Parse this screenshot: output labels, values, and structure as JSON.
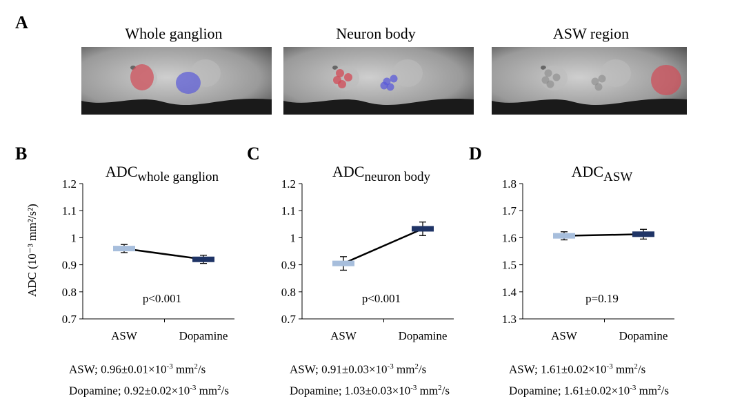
{
  "panel_a": {
    "letter": "A",
    "images": [
      {
        "title": "Whole ganglion",
        "roi": "whole"
      },
      {
        "title": "Neuron body",
        "roi": "neuron"
      },
      {
        "title": "ASW region",
        "roi": "asw"
      }
    ],
    "colors": {
      "red_roi": "#d24a55",
      "blue_roi": "#5a5ad8"
    }
  },
  "y_axis_label": "ADC (10⁻³ mm²/s²)",
  "summaries": [
    {
      "line1_prefix": "ASW; 0.96±0.01×10",
      "line1_exp": "-3",
      "line1_mid": " mm",
      "line1_exp2": "2",
      "line1_suffix": "/s",
      "line2_prefix": "Dopamine; 0.92±0.02×10",
      "line2_exp": "-3",
      "line2_mid": " mm",
      "line2_exp2": "2",
      "line2_suffix": "/s"
    },
    {
      "line1_prefix": "ASW; 0.91±0.03×10",
      "line1_exp": "-3",
      "line1_mid": " mm",
      "line1_exp2": "2",
      "line1_suffix": "/s",
      "line2_prefix": "Dopamine; 1.03±0.03×10",
      "line2_exp": "-3",
      "line2_mid": " mm",
      "line2_exp2": "2",
      "line2_suffix": "/s"
    },
    {
      "line1_prefix": "ASW; 1.61±0.02×10",
      "line1_exp": "-3",
      "line1_mid": " mm",
      "line1_exp2": "2",
      "line1_suffix": "/s",
      "line2_prefix": "Dopamine; 1.61±0.02×10",
      "line2_exp": "-3",
      "line2_mid": " mm",
      "line2_exp2": "2",
      "line2_suffix": "/s"
    }
  ],
  "chart_data": [
    {
      "letter": "B",
      "type": "line",
      "title_main": "ADC",
      "title_sub": "whole ganglion",
      "categories": [
        "ASW",
        "Dopamine"
      ],
      "values": [
        0.96,
        0.92
      ],
      "errors": [
        0.015,
        0.015
      ],
      "ylim": [
        0.7,
        1.2
      ],
      "yticks": [
        "0.7",
        "0.8",
        "0.9",
        "1",
        "1.1",
        "1.2"
      ],
      "annotation": "p<0.001",
      "marker_colors": [
        "#a7bedc",
        "#1f3466"
      ]
    },
    {
      "letter": "C",
      "type": "line",
      "title_main": "ADC",
      "title_sub": "neuron body",
      "categories": [
        "ASW",
        "Dopamine"
      ],
      "values": [
        0.905,
        1.033
      ],
      "errors": [
        0.025,
        0.025
      ],
      "ylim": [
        0.7,
        1.2
      ],
      "yticks": [
        "0.7",
        "0.8",
        "0.9",
        "1",
        "1.1",
        "1.2"
      ],
      "annotation": "p<0.001",
      "marker_colors": [
        "#a7bedc",
        "#1f3466"
      ]
    },
    {
      "letter": "D",
      "type": "line",
      "title_main": "ADC",
      "title_sub": "ASW",
      "categories": [
        "ASW",
        "Dopamine"
      ],
      "values": [
        1.607,
        1.613
      ],
      "errors": [
        0.015,
        0.018
      ],
      "ylim": [
        1.3,
        1.8
      ],
      "yticks": [
        "1.3",
        "1.4",
        "1.5",
        "1.6",
        "1.7",
        "1.8"
      ],
      "annotation": "p=0.19",
      "marker_colors": [
        "#a7bedc",
        "#1f3466"
      ]
    }
  ]
}
